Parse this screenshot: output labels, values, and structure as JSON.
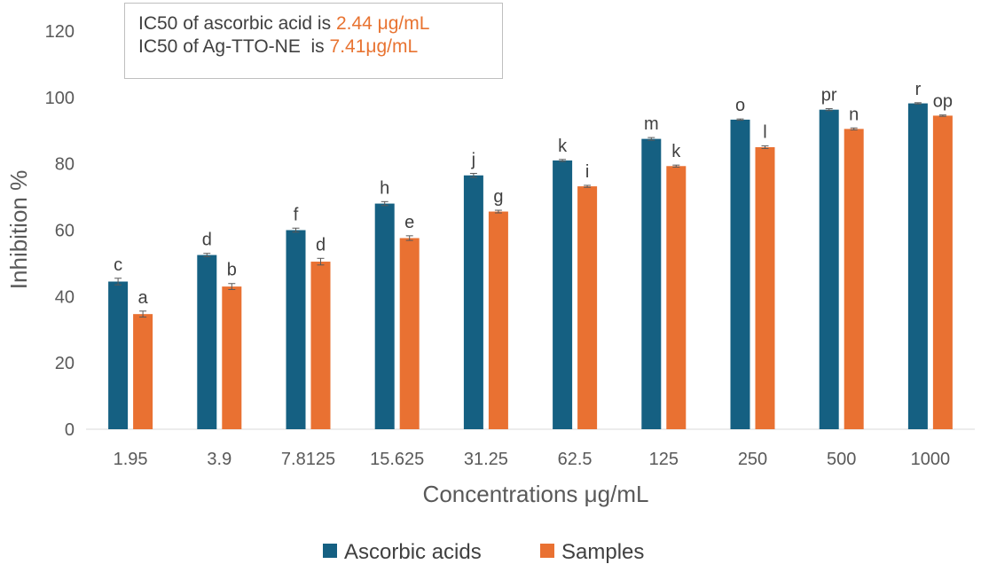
{
  "chart_data": {
    "type": "bar",
    "xlabel": "Concentrations μg/mL",
    "ylabel": "Inhibition %",
    "ylim": [
      0,
      120
    ],
    "yticks": [
      0,
      20,
      40,
      60,
      80,
      100,
      120
    ],
    "grid": false,
    "legend_position": "bottom",
    "categories": [
      "1.95",
      "3.9",
      "7.8125",
      "15.625",
      "31.25",
      "62.5",
      "125",
      "250",
      "500",
      "1000"
    ],
    "series": [
      {
        "name": "Ascorbic acids",
        "color": "#156082",
        "values": [
          44.5,
          52.5,
          60.0,
          68.0,
          76.5,
          81.0,
          87.5,
          93.3,
          96.3,
          98.2
        ],
        "errors": [
          1.0,
          0.5,
          0.6,
          0.6,
          0.6,
          0.3,
          0.4,
          0.2,
          0.3,
          0.2
        ],
        "labels": [
          "c",
          "d",
          "f",
          "h",
          "j",
          "k",
          "m",
          "o",
          "pr",
          "r"
        ]
      },
      {
        "name": "Samples",
        "color": "#e97132",
        "values": [
          34.7,
          43.0,
          50.5,
          57.6,
          65.6,
          73.2,
          79.3,
          85.0,
          90.5,
          94.5
        ],
        "errors": [
          0.9,
          0.9,
          1.0,
          0.7,
          0.4,
          0.3,
          0.3,
          0.4,
          0.3,
          0.2
        ],
        "labels": [
          "a",
          "b",
          "d",
          "e",
          "g",
          "i",
          "k",
          "l",
          "n",
          "op"
        ]
      }
    ]
  },
  "annotation": {
    "line1_prefix": "IC50 of ascorbic acid is ",
    "line1_value": "2.44 μg/mL",
    "line2_prefix": "IC50 of Ag-TTO-NE  is ",
    "line2_value": "7.41μg/mL"
  }
}
